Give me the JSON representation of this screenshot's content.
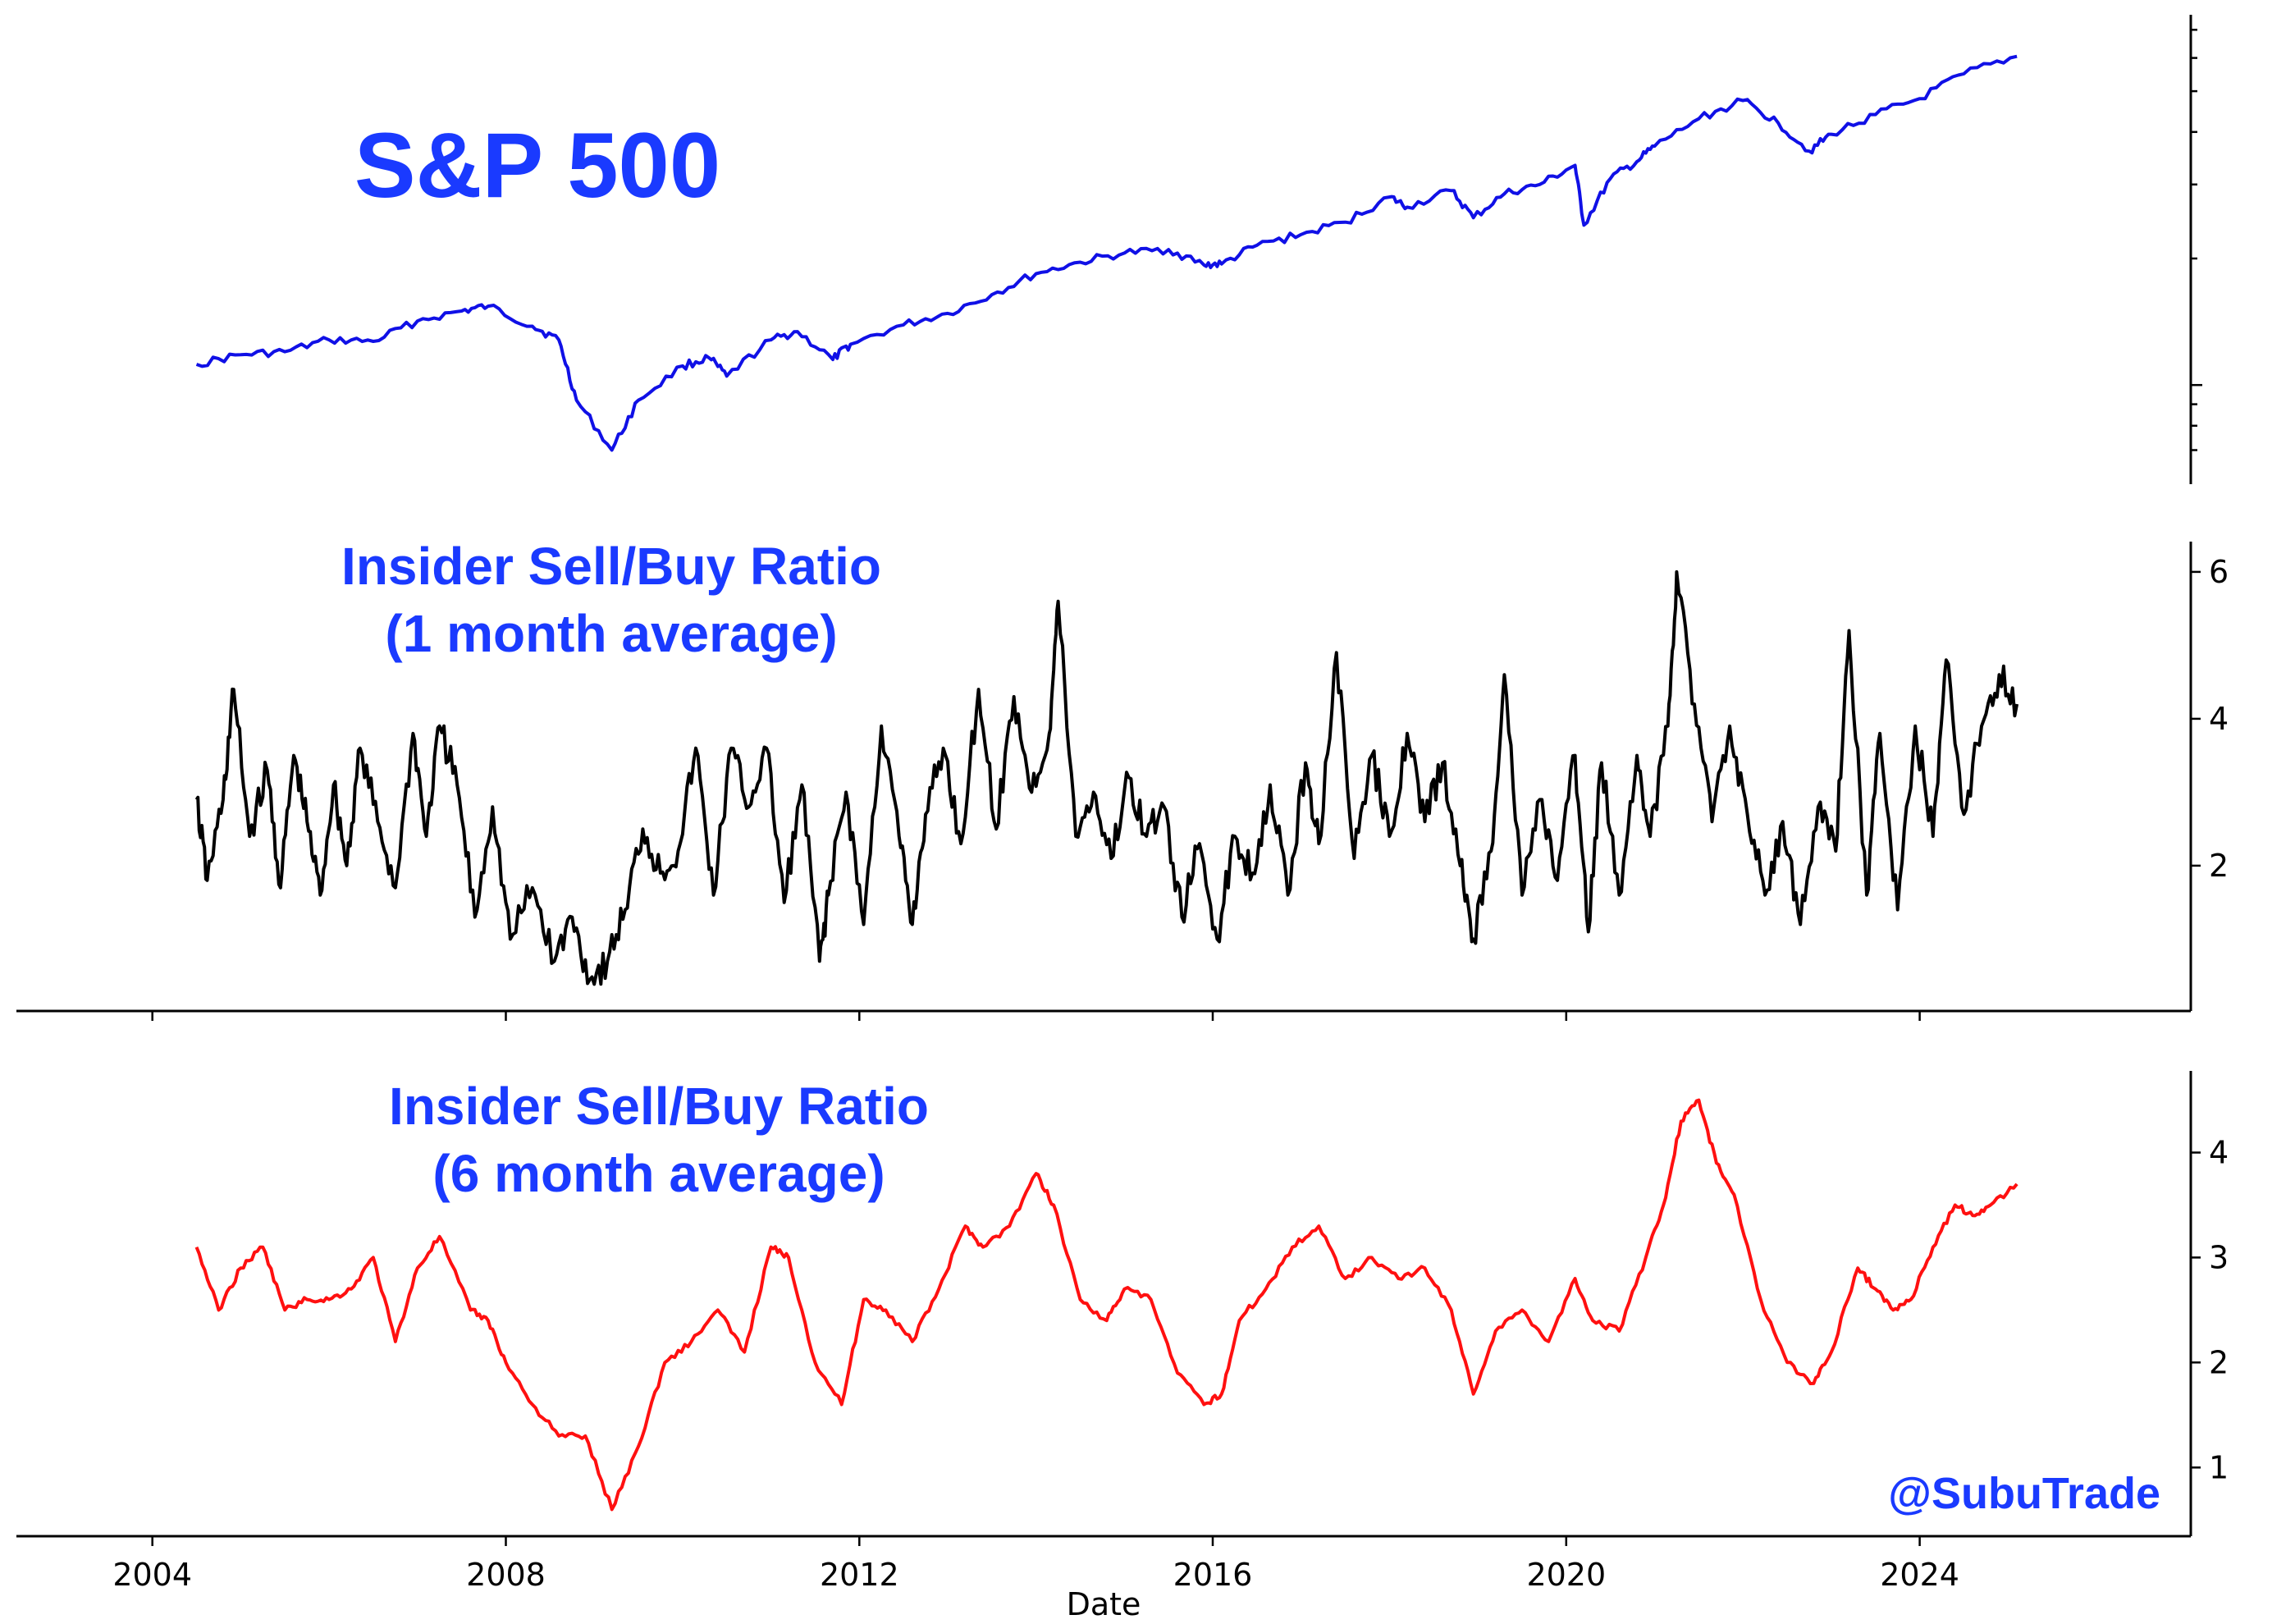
{
  "chart_data": [
    {
      "type": "line",
      "title": "S&P 500",
      "xlabel": "",
      "ylabel": "",
      "y_scale": "log",
      "y_tick_labels": [],
      "x_range": [
        2003.0,
        2026.0
      ],
      "ylim": [
        650,
        7200
      ],
      "grid": false,
      "color": "#1010e6",
      "series": [
        {
          "x": [
            2004.5,
            2005.0,
            2005.5,
            2006.0,
            2006.5,
            2007.0,
            2007.5,
            2007.8,
            2008.3,
            2008.6,
            2008.8,
            2009.2,
            2009.5,
            2010.0,
            2010.3,
            2010.5,
            2011.0,
            2011.3,
            2011.7,
            2011.9,
            2012.5,
            2013.0,
            2013.5,
            2014.0,
            2014.5,
            2015.0,
            2015.5,
            2015.9,
            2016.1,
            2016.5,
            2017.0,
            2017.5,
            2018.0,
            2018.2,
            2018.7,
            2018.95,
            2019.3,
            2019.7,
            2020.1,
            2020.2,
            2020.5,
            2020.8,
            2021.0,
            2021.5,
            2022.0,
            2022.4,
            2022.75,
            2023.0,
            2023.5,
            2024.0,
            2024.5,
            2025.1
          ],
          "y": [
            1120,
            1180,
            1200,
            1280,
            1270,
            1420,
            1500,
            1540,
            1380,
            1280,
            920,
            700,
            920,
            1110,
            1160,
            1050,
            1280,
            1340,
            1150,
            1250,
            1390,
            1480,
            1640,
            1840,
            1960,
            2060,
            2100,
            1930,
            1940,
            2150,
            2280,
            2440,
            2800,
            2650,
            2900,
            2500,
            2850,
            3000,
            3330,
            2400,
            3100,
            3400,
            3700,
            4300,
            4750,
            4200,
            3600,
            3950,
            4400,
            4800,
            5500,
            6050
          ]
        }
      ]
    },
    {
      "type": "line",
      "title": "Insider Sell/Buy Ratio\n(1 month average)",
      "xlabel": "",
      "ylabel": "",
      "x_range": [
        2003.0,
        2026.0
      ],
      "ylim": [
        0.1,
        6.3
      ],
      "y_tick_labels": [
        "2",
        "4",
        "6"
      ],
      "x_tick_labels": [
        "2004",
        "2008",
        "2012",
        "2016",
        "2020",
        "2024"
      ],
      "grid": false,
      "color": "#000000",
      "series": [
        {
          "x": [
            2004.5,
            2004.62,
            2004.8,
            2004.92,
            2005.1,
            2005.3,
            2005.45,
            2005.6,
            2005.75,
            2005.9,
            2006.05,
            2006.2,
            2006.35,
            2006.55,
            2006.75,
            2006.95,
            2007.1,
            2007.25,
            2007.45,
            2007.65,
            2007.85,
            2008.05,
            2008.3,
            2008.55,
            2008.75,
            2008.95,
            2009.15,
            2009.35,
            2009.55,
            2009.75,
            2009.95,
            2010.15,
            2010.35,
            2010.55,
            2010.75,
            2010.95,
            2011.15,
            2011.35,
            2011.55,
            2011.65,
            2011.85,
            2012.05,
            2012.25,
            2012.45,
            2012.6,
            2012.75,
            2012.95,
            2013.15,
            2013.35,
            2013.55,
            2013.75,
            2013.95,
            2014.15,
            2014.25,
            2014.45,
            2014.65,
            2014.85,
            2015.05,
            2015.25,
            2015.45,
            2015.65,
            2015.85,
            2016.05,
            2016.25,
            2016.45,
            2016.65,
            2016.85,
            2017.05,
            2017.2,
            2017.4,
            2017.6,
            2017.8,
            2018.0,
            2018.2,
            2018.4,
            2018.6,
            2018.8,
            2018.95,
            2019.15,
            2019.3,
            2019.5,
            2019.7,
            2019.9,
            2020.1,
            2020.25,
            2020.4,
            2020.6,
            2020.8,
            2020.95,
            2021.15,
            2021.25,
            2021.45,
            2021.65,
            2021.85,
            2022.05,
            2022.25,
            2022.45,
            2022.65,
            2022.85,
            2023.05,
            2023.2,
            2023.4,
            2023.55,
            2023.75,
            2023.95,
            2024.15,
            2024.3,
            2024.5,
            2024.7,
            2024.9,
            2025.1
          ],
          "y": [
            2.9,
            1.8,
            2.9,
            4.4,
            2.4,
            3.3,
            1.7,
            3.5,
            2.6,
            1.6,
            3.1,
            2.0,
            3.6,
            2.6,
            1.7,
            3.8,
            2.4,
            3.9,
            3.1,
            1.3,
            2.8,
            1.0,
            1.7,
            0.7,
            1.3,
            0.45,
            0.7,
            1.4,
            2.5,
            1.9,
            2.2,
            3.6,
            1.6,
            3.6,
            2.8,
            3.6,
            1.5,
            3.1,
            0.7,
            1.6,
            3.0,
            1.2,
            3.9,
            2.4,
            1.2,
            2.7,
            3.6,
            2.3,
            4.4,
            2.5,
            4.3,
            3.0,
            3.8,
            5.6,
            2.4,
            3.0,
            2.1,
            3.2,
            2.4,
            2.8,
            1.3,
            2.3,
            1.0,
            2.4,
            1.9,
            3.1,
            1.6,
            3.4,
            2.3,
            4.9,
            2.1,
            3.5,
            2.4,
            3.8,
            2.6,
            3.4,
            2.0,
            1.0,
            2.2,
            4.6,
            1.6,
            2.9,
            1.8,
            3.5,
            1.1,
            3.4,
            1.6,
            3.5,
            2.4,
            3.9,
            6.0,
            4.2,
            2.6,
            3.9,
            2.7,
            1.6,
            2.6,
            1.2,
            2.8,
            2.2,
            5.2,
            1.6,
            3.8,
            1.4,
            3.9,
            2.4,
            4.8,
            2.7,
            3.9,
            4.6,
            4.2
          ]
        }
      ]
    },
    {
      "type": "line",
      "title": "Insider Sell/Buy Ratio\n(6 month average)",
      "xlabel": "Date",
      "ylabel": "",
      "x_range": [
        2003.0,
        2026.0
      ],
      "ylim": [
        0.4,
        4.7
      ],
      "y_tick_labels": [
        "1",
        "2",
        "3",
        "4"
      ],
      "x_tick_labels": [
        "2004",
        "2008",
        "2012",
        "2016",
        "2020",
        "2024"
      ],
      "grid": false,
      "color": "#ff1010",
      "series": [
        {
          "x": [
            2004.5,
            2004.75,
            2005.0,
            2005.25,
            2005.5,
            2005.75,
            2006.0,
            2006.25,
            2006.5,
            2006.75,
            2007.0,
            2007.25,
            2007.6,
            2007.8,
            2008.0,
            2008.3,
            2008.6,
            2008.9,
            2009.2,
            2009.5,
            2009.8,
            2010.1,
            2010.4,
            2010.7,
            2011.0,
            2011.2,
            2011.5,
            2011.8,
            2012.05,
            2012.3,
            2012.6,
            2012.9,
            2013.2,
            2013.4,
            2013.7,
            2014.0,
            2014.2,
            2014.5,
            2014.8,
            2015.0,
            2015.3,
            2015.6,
            2015.9,
            2016.1,
            2016.3,
            2016.6,
            2016.9,
            2017.2,
            2017.5,
            2017.8,
            2018.1,
            2018.4,
            2018.7,
            2018.95,
            2019.2,
            2019.5,
            2019.8,
            2020.1,
            2020.3,
            2020.6,
            2020.9,
            2021.1,
            2021.3,
            2021.5,
            2021.7,
            2021.9,
            2022.2,
            2022.5,
            2022.8,
            2023.0,
            2023.3,
            2023.5,
            2023.7,
            2023.9,
            2024.15,
            2024.4,
            2024.6,
            2024.8,
            2025.1
          ],
          "y": [
            3.1,
            2.5,
            2.9,
            3.1,
            2.5,
            2.6,
            2.6,
            2.7,
            3.0,
            2.2,
            2.9,
            3.2,
            2.5,
            2.4,
            2.0,
            1.6,
            1.3,
            1.3,
            0.6,
            1.2,
            2.0,
            2.2,
            2.5,
            2.1,
            3.1,
            3.0,
            2.0,
            1.6,
            2.6,
            2.5,
            2.2,
            2.7,
            3.3,
            3.1,
            3.3,
            3.8,
            3.5,
            2.6,
            2.4,
            2.7,
            2.6,
            1.9,
            1.6,
            1.7,
            2.4,
            2.7,
            3.1,
            3.3,
            2.8,
            3.0,
            2.8,
            2.9,
            2.5,
            1.7,
            2.3,
            2.5,
            2.2,
            2.8,
            2.4,
            2.3,
            3.0,
            3.5,
            4.3,
            4.5,
            3.9,
            3.6,
            2.6,
            2.0,
            1.8,
            2.1,
            2.9,
            2.7,
            2.5,
            2.6,
            3.1,
            3.5,
            3.4,
            3.5,
            3.7
          ]
        }
      ]
    }
  ],
  "watermark": "@SubuTrade",
  "colors": {
    "title": "#1a3aff",
    "sp500_line": "#1010e6",
    "ratio_1m_line": "#000000",
    "ratio_6m_line": "#ff1010",
    "axis": "#000000"
  }
}
